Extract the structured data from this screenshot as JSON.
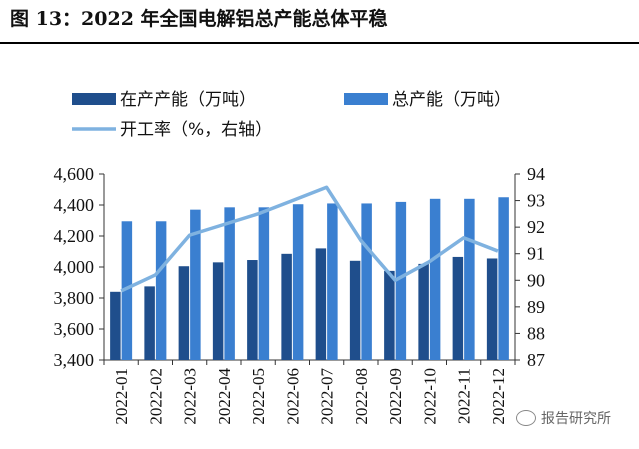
{
  "figure": {
    "title": "图 13：2022 年全国电解铝总产能总体平稳",
    "watermark": "报告研究所"
  },
  "chart_data": {
    "type": "bar",
    "categories": [
      "2022-01",
      "2022-02",
      "2022-03",
      "2022-04",
      "2022-05",
      "2022-06",
      "2022-07",
      "2022-08",
      "2022-09",
      "2022-10",
      "2022-11",
      "2022-12"
    ],
    "series": [
      {
        "name": "在产产能（万吨）",
        "type": "bar",
        "axis": "left",
        "color": "#1f4e8c",
        "values": [
          3840,
          3875,
          4005,
          4030,
          4045,
          4085,
          4120,
          4040,
          3975,
          4020,
          4065,
          4055
        ]
      },
      {
        "name": "总产能（万吨）",
        "type": "bar",
        "axis": "left",
        "color": "#3a7fd0",
        "values": [
          4295,
          4295,
          4370,
          4385,
          4385,
          4405,
          4410,
          4410,
          4420,
          4440,
          4440,
          4450
        ]
      },
      {
        "name": "开工率（%，右轴）",
        "type": "line",
        "axis": "right",
        "color": "#7fb2e0",
        "values": [
          89.6,
          90.2,
          91.7,
          92.1,
          92.5,
          93.0,
          93.5,
          91.5,
          90.0,
          90.7,
          91.6,
          91.1
        ]
      }
    ],
    "y_left": {
      "ylim": [
        3400,
        4600
      ],
      "ticks": [
        "3,400",
        "3,600",
        "3,800",
        "4,000",
        "4,200",
        "4,400",
        "4,600"
      ]
    },
    "y_right": {
      "ylim": [
        87,
        94
      ],
      "ticks": [
        "87",
        "88",
        "89",
        "90",
        "91",
        "92",
        "93",
        "94"
      ]
    },
    "grid": false,
    "legend": "top"
  }
}
